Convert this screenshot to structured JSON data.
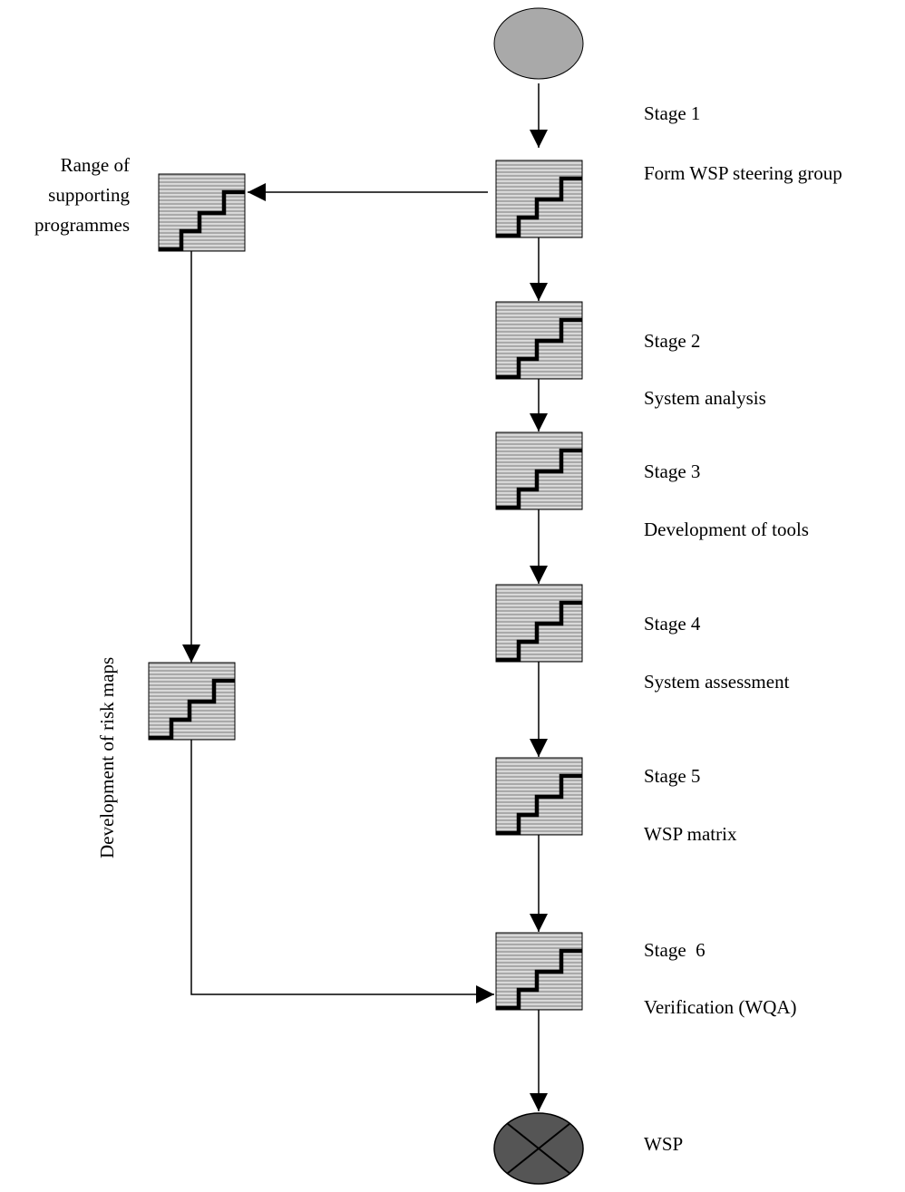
{
  "stages": [
    {
      "stage": "Stage 1",
      "name": "Form WSP steering group"
    },
    {
      "stage": "Stage 2",
      "name": "System analysis"
    },
    {
      "stage": "Stage 3",
      "name": "Development of tools"
    },
    {
      "stage": "Stage 4",
      "name": "System assessment"
    },
    {
      "stage": "Stage 5",
      "name": "WSP matrix"
    },
    {
      "stage": "Stage  6",
      "name": "Verification (WQA)"
    }
  ],
  "supporting": [
    "Range of",
    "supporting",
    "programmes"
  ],
  "side_label": "Development of risk maps",
  "end_label": "WSP",
  "colors": {
    "box_fill": "#a9a9a9",
    "stripe": "#ffffff",
    "stair": "#000000",
    "line": "#000000",
    "start_fill": "#a9a9a9",
    "end_fill": "#555555"
  }
}
